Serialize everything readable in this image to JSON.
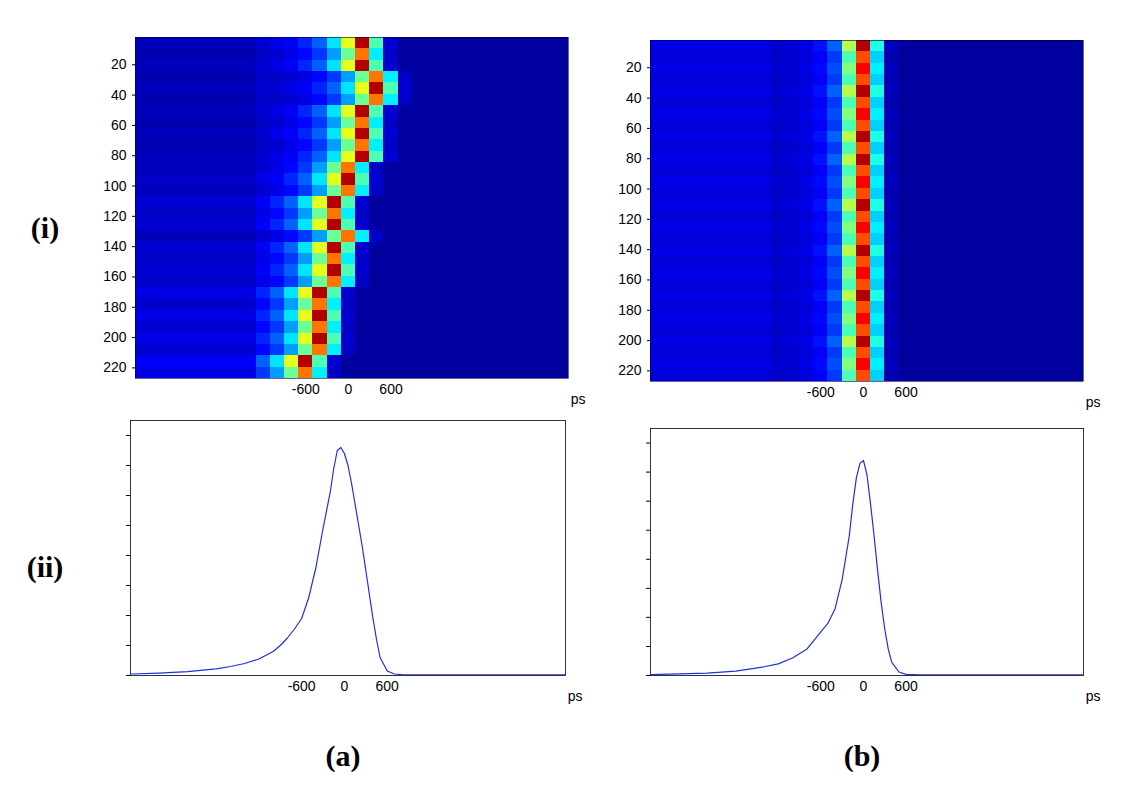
{
  "row_labels": [
    "(i)",
    "(ii)"
  ],
  "column_labels": [
    "(a)",
    "(b)"
  ],
  "chart_data": [
    {
      "type": "heatmap",
      "xlabel": "ps",
      "xlim": [
        -3000,
        3100
      ],
      "ylim": [
        2,
        227
      ],
      "xticks": [
        -600,
        0,
        600
      ],
      "yticks": [
        20,
        40,
        60,
        80,
        100,
        120,
        140,
        160,
        180,
        200,
        220
      ],
      "zlim": [
        0,
        1
      ],
      "x_edges": [
        -3000,
        -1300,
        -1100,
        -900,
        -700,
        -500,
        -300,
        -100,
        100,
        300,
        500,
        700,
        900,
        1100,
        3100
      ],
      "y_edges": [
        2,
        9.5,
        17,
        24.5,
        32,
        39.5,
        47,
        54.5,
        62,
        69.5,
        77,
        84.5,
        92,
        99.5,
        107,
        114.5,
        122,
        129.5,
        137,
        144.5,
        152,
        159.5,
        167,
        174.5,
        182,
        189.5,
        197,
        204.5,
        212,
        219.5,
        227
      ],
      "values": [
        [
          0.06,
          0.08,
          0.1,
          0.12,
          0.16,
          0.22,
          0.35,
          0.6,
          0.95,
          0.45,
          0.08,
          0.03,
          0.03,
          0.03
        ],
        [
          0.05,
          0.07,
          0.08,
          0.1,
          0.13,
          0.18,
          0.28,
          0.48,
          0.76,
          0.36,
          0.07,
          0.03,
          0.03,
          0.03
        ],
        [
          0.06,
          0.08,
          0.1,
          0.12,
          0.16,
          0.22,
          0.35,
          0.6,
          0.95,
          0.45,
          0.08,
          0.03,
          0.03,
          0.03
        ],
        [
          0.05,
          0.07,
          0.07,
          0.08,
          0.1,
          0.13,
          0.18,
          0.28,
          0.48,
          0.76,
          0.36,
          0.07,
          0.03,
          0.03
        ],
        [
          0.06,
          0.08,
          0.08,
          0.1,
          0.12,
          0.16,
          0.22,
          0.35,
          0.6,
          0.95,
          0.45,
          0.08,
          0.03,
          0.03
        ],
        [
          0.05,
          0.07,
          0.07,
          0.08,
          0.1,
          0.13,
          0.18,
          0.28,
          0.48,
          0.76,
          0.36,
          0.07,
          0.03,
          0.03
        ],
        [
          0.06,
          0.08,
          0.1,
          0.12,
          0.16,
          0.22,
          0.35,
          0.6,
          0.95,
          0.45,
          0.08,
          0.03,
          0.03,
          0.03
        ],
        [
          0.05,
          0.07,
          0.08,
          0.1,
          0.13,
          0.18,
          0.28,
          0.48,
          0.76,
          0.36,
          0.07,
          0.03,
          0.03,
          0.03
        ],
        [
          0.06,
          0.08,
          0.1,
          0.12,
          0.16,
          0.22,
          0.35,
          0.6,
          0.95,
          0.45,
          0.08,
          0.03,
          0.03,
          0.03
        ],
        [
          0.05,
          0.07,
          0.08,
          0.1,
          0.13,
          0.18,
          0.28,
          0.48,
          0.76,
          0.36,
          0.07,
          0.03,
          0.03,
          0.03
        ],
        [
          0.06,
          0.08,
          0.1,
          0.12,
          0.16,
          0.22,
          0.35,
          0.6,
          0.95,
          0.45,
          0.08,
          0.03,
          0.03,
          0.03
        ],
        [
          0.06,
          0.08,
          0.1,
          0.13,
          0.18,
          0.28,
          0.48,
          0.76,
          0.36,
          0.07,
          0.03,
          0.03,
          0.03,
          0.03
        ],
        [
          0.07,
          0.1,
          0.12,
          0.16,
          0.22,
          0.35,
          0.6,
          0.95,
          0.45,
          0.08,
          0.03,
          0.03,
          0.03,
          0.03
        ],
        [
          0.06,
          0.08,
          0.1,
          0.13,
          0.18,
          0.28,
          0.48,
          0.76,
          0.36,
          0.07,
          0.03,
          0.03,
          0.03,
          0.03
        ],
        [
          0.08,
          0.12,
          0.16,
          0.22,
          0.35,
          0.6,
          0.95,
          0.45,
          0.08,
          0.03,
          0.03,
          0.03,
          0.03,
          0.03
        ],
        [
          0.07,
          0.1,
          0.13,
          0.18,
          0.28,
          0.48,
          0.76,
          0.36,
          0.07,
          0.03,
          0.03,
          0.03,
          0.03,
          0.03
        ],
        [
          0.08,
          0.12,
          0.16,
          0.22,
          0.35,
          0.6,
          0.95,
          0.45,
          0.08,
          0.03,
          0.03,
          0.03,
          0.03,
          0.03
        ],
        [
          0.06,
          0.08,
          0.1,
          0.13,
          0.18,
          0.28,
          0.48,
          0.76,
          0.36,
          0.07,
          0.03,
          0.03,
          0.03,
          0.03
        ],
        [
          0.08,
          0.12,
          0.16,
          0.22,
          0.35,
          0.6,
          0.95,
          0.45,
          0.08,
          0.03,
          0.03,
          0.03,
          0.03,
          0.03
        ],
        [
          0.07,
          0.1,
          0.13,
          0.18,
          0.28,
          0.48,
          0.76,
          0.36,
          0.07,
          0.03,
          0.03,
          0.03,
          0.03,
          0.03
        ],
        [
          0.08,
          0.12,
          0.16,
          0.22,
          0.35,
          0.6,
          0.95,
          0.45,
          0.08,
          0.03,
          0.03,
          0.03,
          0.03,
          0.03
        ],
        [
          0.07,
          0.1,
          0.13,
          0.18,
          0.28,
          0.48,
          0.76,
          0.36,
          0.07,
          0.03,
          0.03,
          0.03,
          0.03,
          0.03
        ],
        [
          0.1,
          0.16,
          0.22,
          0.35,
          0.6,
          0.95,
          0.45,
          0.08,
          0.03,
          0.03,
          0.03,
          0.03,
          0.03,
          0.03
        ],
        [
          0.08,
          0.13,
          0.18,
          0.28,
          0.48,
          0.76,
          0.36,
          0.07,
          0.03,
          0.03,
          0.03,
          0.03,
          0.03,
          0.03
        ],
        [
          0.1,
          0.16,
          0.22,
          0.35,
          0.6,
          0.95,
          0.45,
          0.08,
          0.03,
          0.03,
          0.03,
          0.03,
          0.03,
          0.03
        ],
        [
          0.08,
          0.13,
          0.18,
          0.28,
          0.48,
          0.76,
          0.36,
          0.07,
          0.03,
          0.03,
          0.03,
          0.03,
          0.03,
          0.03
        ],
        [
          0.1,
          0.16,
          0.22,
          0.35,
          0.6,
          0.95,
          0.45,
          0.08,
          0.03,
          0.03,
          0.03,
          0.03,
          0.03,
          0.03
        ],
        [
          0.08,
          0.13,
          0.18,
          0.28,
          0.48,
          0.76,
          0.36,
          0.07,
          0.03,
          0.03,
          0.03,
          0.03,
          0.03,
          0.03
        ],
        [
          0.12,
          0.22,
          0.35,
          0.6,
          0.95,
          0.45,
          0.08,
          0.03,
          0.03,
          0.03,
          0.03,
          0.03,
          0.03,
          0.03
        ],
        [
          0.1,
          0.18,
          0.28,
          0.48,
          0.76,
          0.36,
          0.07,
          0.03,
          0.03,
          0.03,
          0.03,
          0.03,
          0.03,
          0.03
        ]
      ]
    },
    {
      "type": "heatmap",
      "xlabel": "ps",
      "xlim": [
        -3000,
        3100
      ],
      "ylim": [
        2,
        227
      ],
      "xticks": [
        -600,
        0,
        600
      ],
      "yticks": [
        20,
        40,
        60,
        80,
        100,
        120,
        140,
        160,
        180,
        200,
        220
      ],
      "zlim": [
        0,
        1
      ],
      "x_edges": [
        -3000,
        -1300,
        -1100,
        -900,
        -700,
        -500,
        -300,
        -100,
        100,
        300,
        500,
        700,
        900,
        1100,
        3100
      ],
      "y_edges": [
        2,
        9.5,
        17,
        24.5,
        32,
        39.5,
        47,
        54.5,
        62,
        69.5,
        77,
        84.5,
        92,
        99.5,
        107,
        114.5,
        122,
        129.5,
        137,
        144.5,
        152,
        159.5,
        167,
        174.5,
        182,
        189.5,
        197,
        204.5,
        212,
        219.5,
        227
      ],
      "values": [
        [
          0.1,
          0.08,
          0.09,
          0.1,
          0.14,
          0.22,
          0.55,
          0.95,
          0.4,
          0.06,
          0.03,
          0.03,
          0.03,
          0.03
        ],
        [
          0.09,
          0.07,
          0.08,
          0.09,
          0.12,
          0.18,
          0.45,
          0.8,
          0.33,
          0.05,
          0.03,
          0.03,
          0.03,
          0.03
        ],
        [
          0.1,
          0.08,
          0.08,
          0.1,
          0.13,
          0.2,
          0.5,
          0.88,
          0.36,
          0.06,
          0.03,
          0.03,
          0.03,
          0.03
        ],
        [
          0.09,
          0.07,
          0.08,
          0.09,
          0.12,
          0.18,
          0.45,
          0.8,
          0.33,
          0.05,
          0.03,
          0.03,
          0.03,
          0.03
        ],
        [
          0.1,
          0.08,
          0.09,
          0.1,
          0.14,
          0.22,
          0.55,
          0.95,
          0.4,
          0.06,
          0.03,
          0.03,
          0.03,
          0.03
        ],
        [
          0.09,
          0.07,
          0.08,
          0.09,
          0.12,
          0.18,
          0.45,
          0.8,
          0.33,
          0.05,
          0.03,
          0.03,
          0.03,
          0.03
        ],
        [
          0.1,
          0.08,
          0.08,
          0.1,
          0.13,
          0.2,
          0.5,
          0.88,
          0.36,
          0.06,
          0.03,
          0.03,
          0.03,
          0.03
        ],
        [
          0.09,
          0.07,
          0.08,
          0.09,
          0.12,
          0.18,
          0.45,
          0.8,
          0.33,
          0.05,
          0.03,
          0.03,
          0.03,
          0.03
        ],
        [
          0.1,
          0.08,
          0.09,
          0.1,
          0.14,
          0.22,
          0.55,
          0.95,
          0.4,
          0.06,
          0.03,
          0.03,
          0.03,
          0.03
        ],
        [
          0.09,
          0.07,
          0.08,
          0.09,
          0.12,
          0.18,
          0.45,
          0.8,
          0.33,
          0.05,
          0.03,
          0.03,
          0.03,
          0.03
        ],
        [
          0.1,
          0.08,
          0.09,
          0.1,
          0.14,
          0.22,
          0.55,
          0.95,
          0.4,
          0.06,
          0.03,
          0.03,
          0.03,
          0.03
        ],
        [
          0.09,
          0.07,
          0.08,
          0.09,
          0.12,
          0.18,
          0.45,
          0.8,
          0.33,
          0.05,
          0.03,
          0.03,
          0.03,
          0.03
        ],
        [
          0.1,
          0.08,
          0.08,
          0.1,
          0.13,
          0.2,
          0.5,
          0.88,
          0.36,
          0.06,
          0.03,
          0.03,
          0.03,
          0.03
        ],
        [
          0.09,
          0.07,
          0.08,
          0.09,
          0.12,
          0.18,
          0.45,
          0.8,
          0.33,
          0.05,
          0.03,
          0.03,
          0.03,
          0.03
        ],
        [
          0.1,
          0.08,
          0.09,
          0.1,
          0.14,
          0.22,
          0.55,
          0.95,
          0.4,
          0.06,
          0.03,
          0.03,
          0.03,
          0.03
        ],
        [
          0.09,
          0.07,
          0.08,
          0.09,
          0.12,
          0.18,
          0.45,
          0.8,
          0.33,
          0.05,
          0.03,
          0.03,
          0.03,
          0.03
        ],
        [
          0.1,
          0.08,
          0.08,
          0.1,
          0.13,
          0.2,
          0.5,
          0.88,
          0.36,
          0.06,
          0.03,
          0.03,
          0.03,
          0.03
        ],
        [
          0.09,
          0.07,
          0.08,
          0.09,
          0.12,
          0.18,
          0.45,
          0.8,
          0.33,
          0.05,
          0.03,
          0.03,
          0.03,
          0.03
        ],
        [
          0.1,
          0.08,
          0.09,
          0.1,
          0.14,
          0.22,
          0.55,
          0.95,
          0.4,
          0.06,
          0.03,
          0.03,
          0.03,
          0.03
        ],
        [
          0.09,
          0.07,
          0.08,
          0.09,
          0.12,
          0.18,
          0.45,
          0.8,
          0.33,
          0.05,
          0.03,
          0.03,
          0.03,
          0.03
        ],
        [
          0.1,
          0.08,
          0.08,
          0.1,
          0.13,
          0.2,
          0.5,
          0.88,
          0.36,
          0.06,
          0.03,
          0.03,
          0.03,
          0.03
        ],
        [
          0.09,
          0.07,
          0.08,
          0.09,
          0.12,
          0.18,
          0.45,
          0.8,
          0.33,
          0.05,
          0.03,
          0.03,
          0.03,
          0.03
        ],
        [
          0.1,
          0.08,
          0.09,
          0.1,
          0.14,
          0.22,
          0.55,
          0.95,
          0.4,
          0.06,
          0.03,
          0.03,
          0.03,
          0.03
        ],
        [
          0.09,
          0.07,
          0.08,
          0.09,
          0.12,
          0.18,
          0.45,
          0.8,
          0.33,
          0.05,
          0.03,
          0.03,
          0.03,
          0.03
        ],
        [
          0.1,
          0.08,
          0.08,
          0.1,
          0.13,
          0.2,
          0.5,
          0.88,
          0.36,
          0.06,
          0.03,
          0.03,
          0.03,
          0.03
        ],
        [
          0.09,
          0.07,
          0.08,
          0.09,
          0.12,
          0.18,
          0.45,
          0.8,
          0.33,
          0.05,
          0.03,
          0.03,
          0.03,
          0.03
        ],
        [
          0.1,
          0.08,
          0.09,
          0.1,
          0.14,
          0.22,
          0.55,
          0.95,
          0.4,
          0.06,
          0.03,
          0.03,
          0.03,
          0.03
        ],
        [
          0.09,
          0.07,
          0.08,
          0.09,
          0.12,
          0.18,
          0.45,
          0.8,
          0.33,
          0.05,
          0.03,
          0.03,
          0.03,
          0.03
        ],
        [
          0.1,
          0.08,
          0.08,
          0.1,
          0.13,
          0.2,
          0.5,
          0.88,
          0.36,
          0.06,
          0.03,
          0.03,
          0.03,
          0.03
        ],
        [
          0.09,
          0.07,
          0.08,
          0.09,
          0.12,
          0.18,
          0.45,
          0.8,
          0.33,
          0.05,
          0.03,
          0.03,
          0.03,
          0.03
        ]
      ]
    },
    {
      "type": "line",
      "xlabel": "ps",
      "color": "#1f2fe0",
      "tick_labels": "x",
      "xlim": [
        -3000,
        3100
      ],
      "ylim": [
        0,
        8.5
      ],
      "xticks": [
        -600,
        0,
        600
      ],
      "yticks": [
        0,
        1,
        2,
        3,
        4,
        5,
        6,
        7,
        8
      ],
      "x": [
        -3000,
        -2600,
        -2200,
        -1800,
        -1600,
        -1400,
        -1200,
        -1000,
        -900,
        -800,
        -700,
        -600,
        -500,
        -400,
        -300,
        -200,
        -150,
        -100,
        -50,
        0,
        50,
        100,
        150,
        200,
        250,
        300,
        350,
        400,
        450,
        500,
        600,
        700,
        800,
        1200,
        2000,
        3100
      ],
      "values": [
        0.05,
        0.08,
        0.13,
        0.22,
        0.3,
        0.4,
        0.55,
        0.8,
        1.0,
        1.25,
        1.55,
        1.9,
        2.6,
        3.6,
        4.9,
        6.1,
        6.9,
        7.5,
        7.6,
        7.4,
        7.0,
        6.4,
        5.7,
        5.0,
        4.3,
        3.5,
        2.7,
        1.9,
        1.2,
        0.6,
        0.15,
        0.05,
        0.03,
        0.02,
        0.02,
        0.02
      ]
    },
    {
      "type": "line",
      "xlabel": "ps",
      "color": "#1f2fe0",
      "tick_labels": "x",
      "xlim": [
        -3000,
        3100
      ],
      "ylim": [
        0,
        8.5
      ],
      "xticks": [
        -600,
        0,
        600
      ],
      "yticks": [
        0,
        1,
        2,
        3,
        4,
        5,
        6,
        7,
        8
      ],
      "x": [
        -3000,
        -2200,
        -1800,
        -1400,
        -1200,
        -1000,
        -800,
        -700,
        -600,
        -500,
        -400,
        -300,
        -200,
        -150,
        -100,
        -50,
        0,
        50,
        100,
        150,
        200,
        250,
        300,
        350,
        400,
        500,
        600,
        800,
        1500,
        3100
      ],
      "values": [
        0.03,
        0.08,
        0.15,
        0.3,
        0.4,
        0.6,
        0.9,
        1.2,
        1.5,
        1.8,
        2.3,
        3.3,
        4.8,
        5.9,
        6.8,
        7.3,
        7.4,
        6.9,
        5.9,
        4.8,
        3.6,
        2.5,
        1.6,
        0.9,
        0.45,
        0.12,
        0.04,
        0.02,
        0.02,
        0.02
      ]
    }
  ]
}
